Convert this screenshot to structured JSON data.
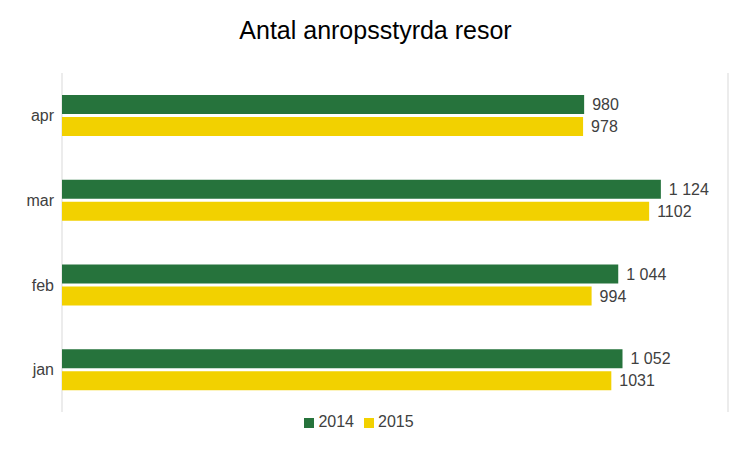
{
  "chart_data": {
    "type": "bar",
    "title": "Antal anropsstyrda resor",
    "orientation": "horizontal",
    "categories": [
      "jan",
      "feb",
      "mar",
      "apr"
    ],
    "series": [
      {
        "name": "2014",
        "color": "#26733c",
        "values": [
          1052,
          1044,
          1124,
          980
        ],
        "value_labels": [
          "1 052",
          "1 044",
          "1 124",
          "980"
        ]
      },
      {
        "name": "2015",
        "color": "#f2d100",
        "values": [
          1031,
          994,
          1102,
          978
        ],
        "value_labels": [
          "1031",
          "994",
          "1102",
          "978"
        ]
      }
    ],
    "xlim": [
      0,
      1250
    ],
    "xticks": [
      0,
      250,
      500,
      750,
      1000,
      1250
    ],
    "grid": true,
    "legend": "bottom",
    "data_labels": true,
    "tick_labels": "y"
  }
}
